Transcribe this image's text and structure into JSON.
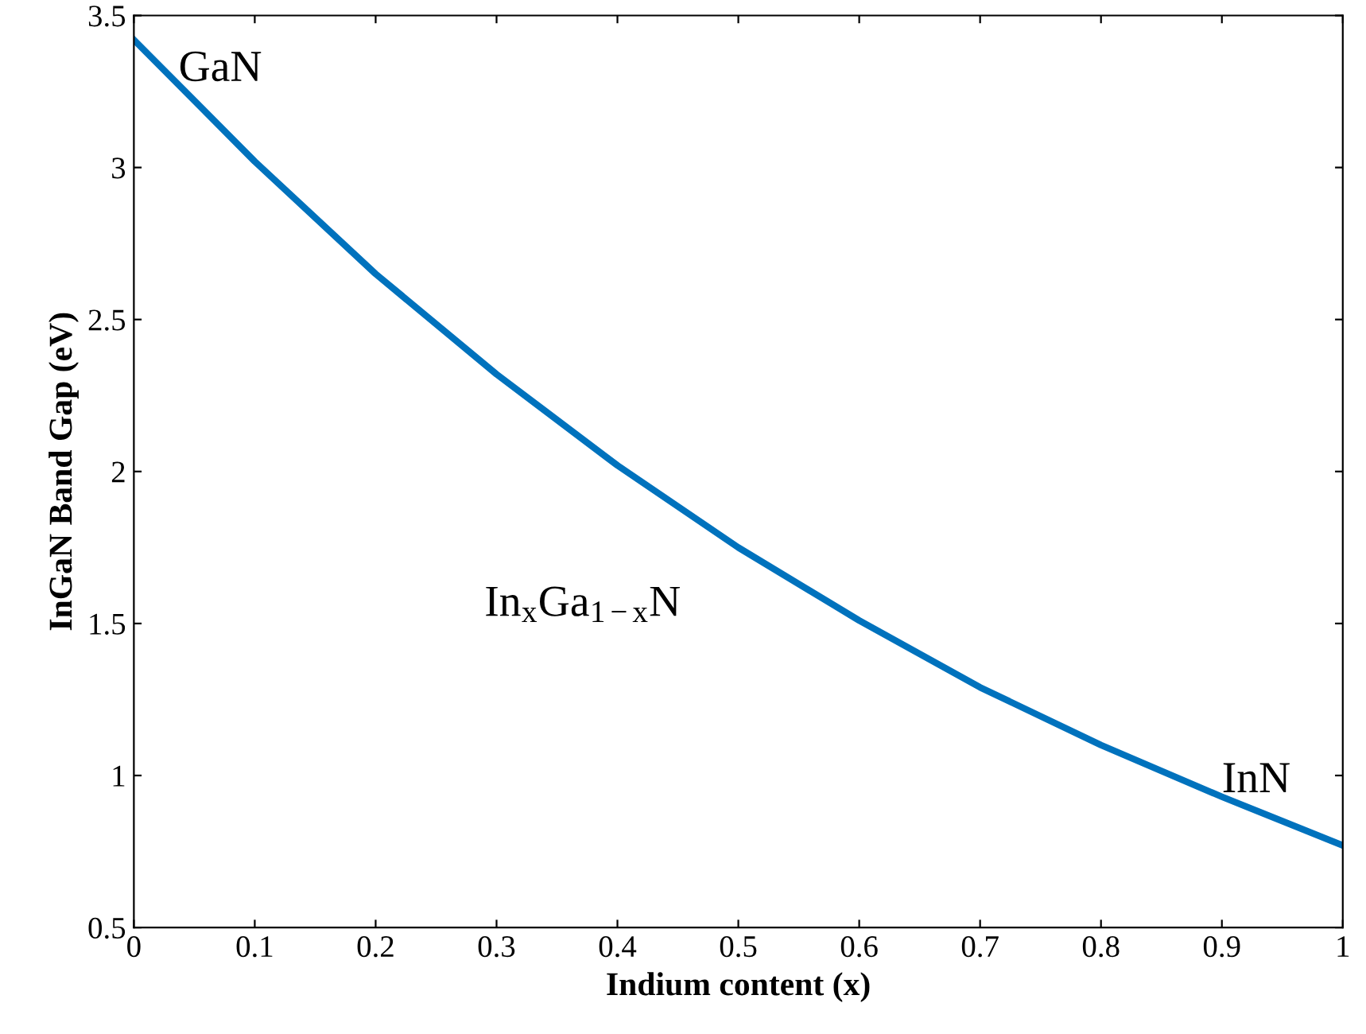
{
  "chart_data": {
    "type": "line",
    "xlabel": "Indium content (x)",
    "ylabel": "InGaN Band Gap (eV)",
    "x": [
      0,
      0.1,
      0.2,
      0.3,
      0.4,
      0.5,
      0.6,
      0.7,
      0.8,
      0.9,
      1.0
    ],
    "series": [
      {
        "color": "#0072bd",
        "values": [
          3.42,
          3.02,
          2.65,
          2.32,
          2.02,
          1.75,
          1.51,
          1.29,
          1.1,
          0.93,
          0.77
        ]
      }
    ],
    "xlim": [
      0,
      1
    ],
    "ylim": [
      0.5,
      3.5
    ],
    "xticks": [
      0,
      0.1,
      0.2,
      0.3,
      0.4,
      0.5,
      0.6,
      0.7,
      0.8,
      0.9,
      1
    ],
    "yticks": [
      0.5,
      1,
      1.5,
      2,
      2.5,
      3,
      3.5
    ],
    "annotations": [
      {
        "text": "GaN",
        "x": 0.037,
        "y": 3.32
      },
      "In$_{x}$Ga$_{1−x}$N",
      "InN"
    ],
    "grid": false,
    "legend": false,
    "marker": "none",
    "line_style": "solid"
  }
}
